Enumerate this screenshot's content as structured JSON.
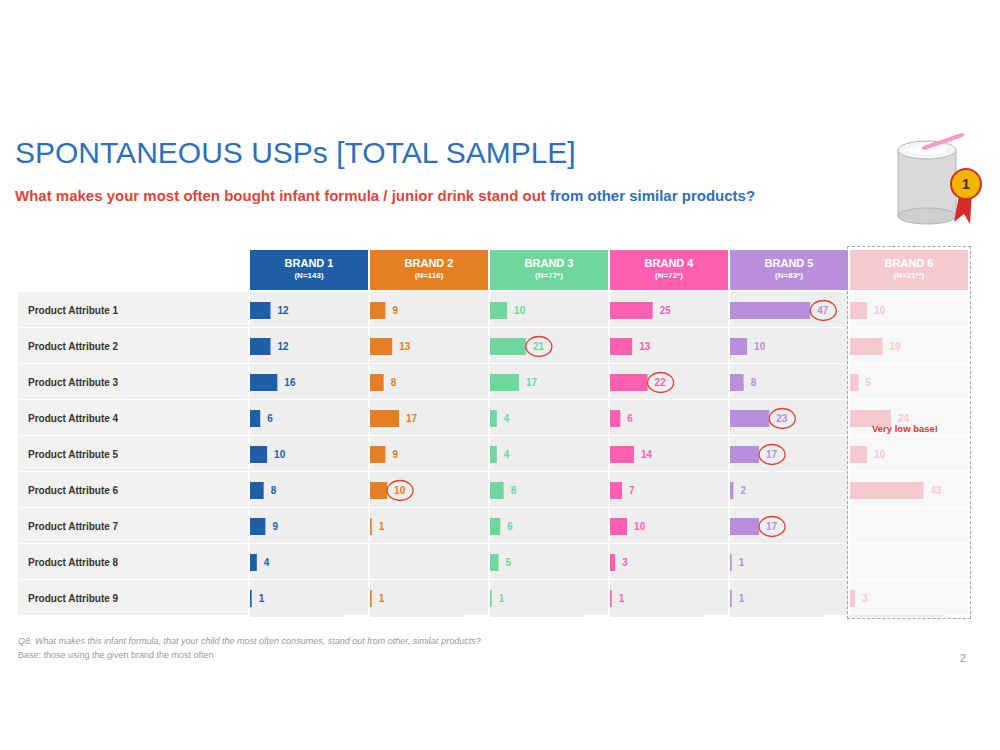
{
  "title": "SPONTANEOUS USPs [TOTAL SAMPLE]",
  "subtitle": [
    "What makes your most often bought infant formula / junior drink stand out",
    "from other similar products?"
  ],
  "badge": "1",
  "footnotes": [
    "Q8. What makes this infant formula, that your child the most often consumes, stand out from other, similar products?",
    "Base: those using the given brand the most often"
  ],
  "page_number": "2",
  "chart_data": [
    {
      "type": "bar",
      "orientation": "horizontal",
      "title": "BRAND 1",
      "subtitle": "(N=143)",
      "categories": [
        "Product Attribute 1",
        "Product Attribute 2",
        "Product Attribute 3",
        "Product Attribute 4",
        "Product Attribute 5",
        "Product Attribute 6",
        "Product Attribute 7",
        "Product Attribute 8",
        "Product Attribute 9"
      ],
      "values": [
        12,
        12,
        16,
        6,
        10,
        8,
        9,
        4,
        1
      ],
      "color": "#1f5fa8",
      "xlim": [
        0,
        55
      ],
      "data_labels": true,
      "tick_labels": "y",
      "highlighted": [
        false,
        false,
        false,
        false,
        false,
        false,
        false,
        false,
        false
      ]
    },
    {
      "type": "bar",
      "orientation": "horizontal",
      "title": "BRAND 2",
      "subtitle": "(N=116)",
      "categories": [
        "Product Attribute 1",
        "Product Attribute 2",
        "Product Attribute 3",
        "Product Attribute 4",
        "Product Attribute 5",
        "Product Attribute 6",
        "Product Attribute 7",
        "Product Attribute 8",
        "Product Attribute 9"
      ],
      "values": [
        9,
        13,
        8,
        17,
        9,
        10,
        1,
        0,
        1
      ],
      "color": "#e67e22",
      "xlim": [
        0,
        55
      ],
      "data_labels": true,
      "tick_labels": false,
      "highlighted": [
        false,
        false,
        false,
        false,
        false,
        true,
        false,
        false,
        false
      ]
    },
    {
      "type": "bar",
      "orientation": "horizontal",
      "title": "BRAND 3",
      "subtitle": "(N=77*)",
      "categories": [
        "Product Attribute 1",
        "Product Attribute 2",
        "Product Attribute 3",
        "Product Attribute 4",
        "Product Attribute 5",
        "Product Attribute 6",
        "Product Attribute 7",
        "Product Attribute 8",
        "Product Attribute 9"
      ],
      "values": [
        10,
        21,
        17,
        4,
        4,
        8,
        6,
        5,
        1
      ],
      "color": "#6fd69d",
      "xlim": [
        0,
        55
      ],
      "data_labels": true,
      "tick_labels": false,
      "highlighted": [
        false,
        true,
        false,
        false,
        false,
        false,
        false,
        false,
        false
      ]
    },
    {
      "type": "bar",
      "orientation": "horizontal",
      "title": "BRAND 4",
      "subtitle": "(N=72*)",
      "categories": [
        "Product Attribute 1",
        "Product Attribute 2",
        "Product Attribute 3",
        "Product Attribute 4",
        "Product Attribute 5",
        "Product Attribute 6",
        "Product Attribute 7",
        "Product Attribute 8",
        "Product Attribute 9"
      ],
      "values": [
        25,
        13,
        22,
        6,
        14,
        7,
        10,
        3,
        1
      ],
      "color": "#ff5fb0",
      "xlim": [
        0,
        55
      ],
      "data_labels": true,
      "tick_labels": false,
      "highlighted": [
        false,
        false,
        true,
        false,
        false,
        false,
        false,
        false,
        false
      ]
    },
    {
      "type": "bar",
      "orientation": "horizontal",
      "title": "BRAND 5",
      "subtitle": "(N=83*)",
      "categories": [
        "Product Attribute 1",
        "Product Attribute 2",
        "Product Attribute 3",
        "Product Attribute 4",
        "Product Attribute 5",
        "Product Attribute 6",
        "Product Attribute 7",
        "Product Attribute 8",
        "Product Attribute 9"
      ],
      "values": [
        47,
        10,
        8,
        23,
        17,
        2,
        17,
        1,
        1
      ],
      "color": "#b98fdc",
      "xlim": [
        0,
        55
      ],
      "data_labels": true,
      "tick_labels": false,
      "highlighted": [
        true,
        false,
        false,
        true,
        true,
        false,
        true,
        false,
        false
      ]
    },
    {
      "type": "bar",
      "orientation": "horizontal",
      "title": "BRAND 6",
      "subtitle": "(N=21**)",
      "categories": [
        "Product Attribute 1",
        "Product Attribute 2",
        "Product Attribute 3",
        "Product Attribute 4",
        "Product Attribute 5",
        "Product Attribute 6",
        "Product Attribute 7",
        "Product Attribute 8",
        "Product Attribute 9"
      ],
      "values": [
        10,
        19,
        5,
        24,
        10,
        43,
        0,
        0,
        3
      ],
      "color": "#f6c9d0",
      "xlim": [
        0,
        55
      ],
      "data_labels": true,
      "tick_labels": false,
      "highlighted": [
        false,
        false,
        false,
        false,
        false,
        false,
        false,
        false,
        false
      ],
      "annotation": "Very low base!"
    }
  ]
}
